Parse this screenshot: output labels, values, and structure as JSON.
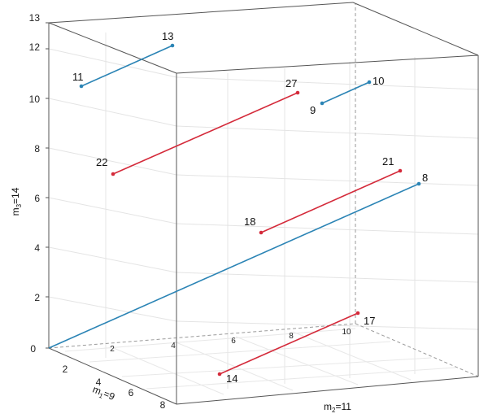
{
  "axes": {
    "m1": {
      "label": "m",
      "sub": "1",
      "value": "=9",
      "ticks": [
        "2",
        "4",
        "6",
        "8"
      ]
    },
    "m2": {
      "label": "m",
      "sub": "2",
      "value": "=11",
      "ticks": [
        "2",
        "4",
        "6",
        "8",
        "10"
      ]
    },
    "m3": {
      "label": "m",
      "sub": "3",
      "value": "=14",
      "ticks": [
        "0",
        "2",
        "4",
        "6",
        "8",
        "10",
        "12",
        "13"
      ]
    }
  },
  "colors": {
    "red": "#d42a3a",
    "blue": "#2b84b5",
    "box": "#555555"
  },
  "segments": [
    {
      "color": "blue",
      "a": "11",
      "b": "13"
    },
    {
      "color": "red",
      "a": "22",
      "b": "27"
    },
    {
      "color": "blue",
      "a": "9",
      "b": "10"
    },
    {
      "color": "red",
      "a": "18",
      "b": "21"
    },
    {
      "color": "blue",
      "a": "",
      "b": "8"
    },
    {
      "color": "red",
      "a": "14",
      "b": "17"
    }
  ]
}
